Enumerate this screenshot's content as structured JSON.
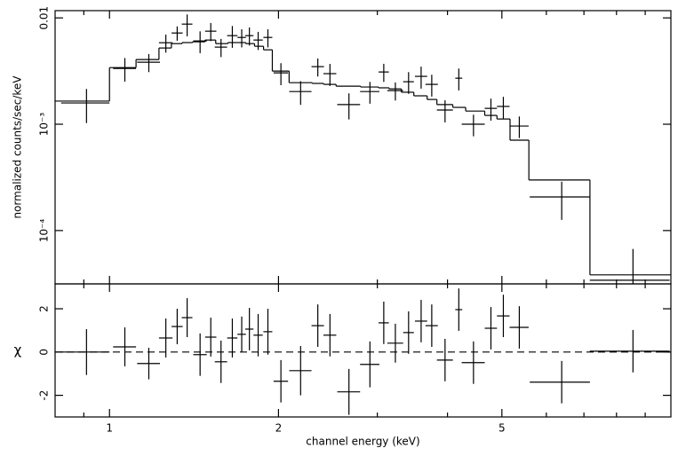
{
  "chart_data": [
    {
      "type": "errorbar",
      "ylabel": "normalized counts/sec/keV",
      "log_x": true,
      "log_y": true,
      "color": "#000000",
      "show_xtick_labels": false,
      "xlim": [
        0.8,
        10
      ],
      "ylim": [
        3.15e-05,
        0.0117
      ],
      "xticks": [
        1,
        2,
        5
      ],
      "xminorticks": [
        0.9,
        3,
        4,
        6,
        7,
        8,
        9
      ],
      "yticks": [
        0.01,
        {
          "value": 0.001,
          "label": "10⁻³"
        },
        {
          "value": 0.0001,
          "label": "10⁻⁴"
        }
      ],
      "x": [
        0.91,
        1.065,
        1.175,
        1.26,
        1.32,
        1.375,
        1.45,
        1.515,
        1.58,
        1.655,
        1.72,
        1.775,
        1.84,
        1.915,
        2.02,
        2.19,
        2.35,
        2.47,
        2.67,
        2.91,
        3.08,
        3.23,
        3.41,
        3.59,
        3.75,
        3.96,
        4.19,
        4.45,
        4.78,
        5.03,
        5.37,
        6.39,
        8.56
      ],
      "xerr": [
        0.09,
        0.05,
        0.055,
        0.035,
        0.03,
        0.03,
        0.04,
        0.035,
        0.04,
        0.035,
        0.03,
        0.03,
        0.035,
        0.035,
        0.06,
        0.1,
        0.06,
        0.065,
        0.125,
        0.115,
        0.065,
        0.105,
        0.075,
        0.09,
        0.095,
        0.13,
        0.06,
        0.21,
        0.12,
        0.13,
        0.21,
        0.785,
        1.39
      ],
      "values": [
        0.001585,
        0.00335,
        0.00383,
        0.00584,
        0.00721,
        0.00874,
        0.00607,
        0.0075,
        0.00531,
        0.00681,
        0.00655,
        0.00681,
        0.00619,
        0.00655,
        0.00304,
        0.00203,
        0.00348,
        0.00299,
        0.00153,
        0.00203,
        0.0031,
        0.00207,
        0.00251,
        0.00282,
        0.00237,
        0.00136,
        0.00271,
        0.001,
        0.00141,
        0.00147,
        0.000962,
        0.000207,
        3.41e-05
      ],
      "errors": [
        0.00056,
        0.00084,
        0.00074,
        0.00113,
        0.00111,
        0.00203,
        0.00141,
        0.00145,
        0.00103,
        0.00158,
        0.00127,
        0.00132,
        0.0012,
        0.00127,
        0.00071,
        0.00051,
        0.00067,
        0.0007,
        0.00042,
        0.00047,
        0.0006,
        0.0004,
        0.00058,
        0.00066,
        0.00055,
        0.00032,
        0.00063,
        0.00023,
        0.00033,
        0.00034,
        0.00022,
        8.1e-05,
        3.3e-05
      ],
      "model": {
        "bins": [
          0.8,
          1.0,
          1.115,
          1.225,
          1.289,
          1.347,
          1.406,
          1.48,
          1.546,
          1.625,
          1.686,
          1.749,
          1.813,
          1.881,
          1.95,
          2.089,
          2.296,
          2.407,
          2.533,
          2.8,
          3.014,
          3.148,
          3.31,
          3.484,
          3.68,
          3.83,
          4.088,
          4.31,
          4.66,
          4.9,
          5.17,
          5.585,
          7.175,
          10
        ],
        "values": [
          0.00165,
          0.00341,
          0.00406,
          0.00521,
          0.00573,
          0.00586,
          0.00596,
          0.00619,
          0.00573,
          0.00586,
          0.00586,
          0.00573,
          0.00541,
          0.00501,
          0.00316,
          0.00246,
          0.00242,
          0.00237,
          0.00228,
          0.00224,
          0.0022,
          0.00215,
          0.002,
          0.00185,
          0.00171,
          0.00153,
          0.00144,
          0.00133,
          0.00121,
          0.00112,
          0.000708,
          0.000299,
          3.83e-05
        ]
      }
    },
    {
      "type": "errorbar",
      "xlabel": "channel energy (keV)",
      "ylabel": "χ",
      "log_x": true,
      "log_y": false,
      "color": "#000000",
      "show_xtick_labels": true,
      "reference_line": 0,
      "xlim": [
        0.8,
        10
      ],
      "ylim": [
        -3,
        3.15
      ],
      "xticks": [
        1,
        2,
        5
      ],
      "xminorticks": [
        0.9,
        3,
        4,
        6,
        7,
        8,
        9
      ],
      "yticks": [
        -2,
        0,
        2
      ],
      "x": [
        0.91,
        1.065,
        1.175,
        1.26,
        1.32,
        1.375,
        1.45,
        1.515,
        1.58,
        1.655,
        1.72,
        1.775,
        1.84,
        1.915,
        2.02,
        2.19,
        2.35,
        2.47,
        2.67,
        2.91,
        3.08,
        3.23,
        3.41,
        3.59,
        3.75,
        3.96,
        4.19,
        4.45,
        4.78,
        5.03,
        5.37,
        6.39,
        8.56
      ],
      "xerr": [
        0.09,
        0.05,
        0.055,
        0.035,
        0.03,
        0.03,
        0.04,
        0.035,
        0.04,
        0.035,
        0.03,
        0.03,
        0.035,
        0.035,
        0.06,
        0.1,
        0.06,
        0.065,
        0.125,
        0.115,
        0.065,
        0.105,
        0.075,
        0.09,
        0.095,
        0.13,
        0.06,
        0.21,
        0.12,
        0.13,
        0.21,
        0.785,
        1.39
      ],
      "values": [
        0,
        0.24,
        -0.53,
        0.65,
        1.18,
        1.59,
        -0.12,
        0.69,
        -0.45,
        0.65,
        0.82,
        1.06,
        0.78,
        0.94,
        -1.35,
        -0.86,
        1.22,
        0.78,
        -1.84,
        -0.57,
        1.35,
        0.41,
        0.9,
        1.43,
        1.22,
        -0.37,
        1.96,
        -0.49,
        1.1,
        1.67,
        1.14,
        -1.39,
        0.04
      ],
      "errors": [
        1.06,
        0.9,
        0.73,
        0.9,
        0.82,
        0.9,
        0.98,
        0.9,
        0.98,
        0.9,
        0.82,
        0.98,
        0.98,
        1.06,
        0.98,
        1.14,
        0.98,
        0.98,
        1.06,
        1.06,
        0.98,
        0.9,
        0.98,
        0.98,
        0.98,
        0.98,
        0.98,
        0.98,
        0.98,
        0.98,
        0.98,
        0.98,
        0.98
      ]
    }
  ]
}
